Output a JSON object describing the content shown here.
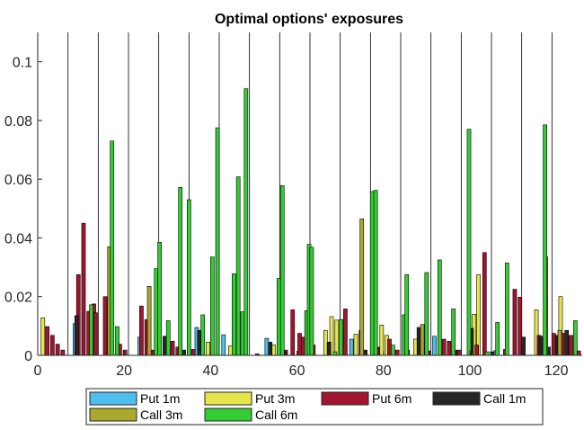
{
  "chart_data": {
    "type": "bar",
    "title": "Optimal options' exposures",
    "xlabel": "",
    "ylabel": "",
    "xlim": [
      0,
      126
    ],
    "ylim": [
      0,
      0.11
    ],
    "xticks": [
      0,
      20,
      40,
      60,
      80,
      100,
      120
    ],
    "yticks": [
      0,
      0.02,
      0.04,
      0.06,
      0.08,
      0.1
    ],
    "xtick_labels": [
      "0",
      "20",
      "40",
      "60",
      "80",
      "100",
      "120"
    ],
    "ytick_labels": [
      "0",
      "0.02",
      "0.04",
      "0.06",
      "0.08",
      "0.1"
    ],
    "grid": "vertical lines at group boundaries",
    "legend_position": "bottom, outside",
    "bar_group_width": 6,
    "group_boundaries": [
      7,
      14,
      21,
      28,
      35,
      42,
      49,
      56,
      63,
      70,
      77,
      84,
      91,
      98,
      105,
      112,
      119
    ],
    "series": [
      {
        "name": "Put 1m",
        "color": "#4DBEEE",
        "points": [
          [
            8.6,
            0.0108
          ],
          [
            23.6,
            0.0062
          ],
          [
            36.8,
            0.0095
          ],
          [
            43.0,
            0.007
          ],
          [
            53.0,
            0.0058
          ],
          [
            72.6,
            0.0055
          ],
          [
            91.8,
            0.0065
          ],
          [
            106.0,
            0.0016
          ]
        ]
      },
      {
        "name": "Put 3m",
        "color": "#E6E64C",
        "points": [
          [
            1.2,
            0.0128
          ],
          [
            16.0,
            0.0088
          ],
          [
            39.4,
            0.0045
          ],
          [
            44.6,
            0.0032
          ],
          [
            54.6,
            0.0035
          ],
          [
            66.6,
            0.0085
          ],
          [
            68.0,
            0.0132
          ],
          [
            69.2,
            0.012
          ],
          [
            73.6,
            0.0072
          ],
          [
            79.6,
            0.0103
          ],
          [
            80.8,
            0.0068
          ],
          [
            87.4,
            0.0055
          ],
          [
            101.0,
            0.014
          ],
          [
            102.0,
            0.0275
          ],
          [
            115.4,
            0.0155
          ],
          [
            121.0,
            0.02
          ]
        ]
      },
      {
        "name": "Put 6m",
        "color": "#A2142F",
        "points": [
          [
            2.2,
            0.0098
          ],
          [
            3.4,
            0.0068
          ],
          [
            4.6,
            0.0038
          ],
          [
            5.8,
            0.0018
          ],
          [
            9.4,
            0.0275
          ],
          [
            10.6,
            0.045
          ],
          [
            11.8,
            0.015
          ],
          [
            13.0,
            0.0175
          ],
          [
            13.4,
            0.0145
          ],
          [
            15.6,
            0.02
          ],
          [
            19.0,
            0.0038
          ],
          [
            20.2,
            0.0018
          ],
          [
            24.0,
            0.0168
          ],
          [
            25.2,
            0.0122
          ],
          [
            26.4,
            0.0018
          ],
          [
            31.2,
            0.0048
          ],
          [
            32.4,
            0.0028
          ],
          [
            36.0,
            0.002
          ],
          [
            50.8,
            0.0005
          ],
          [
            57.4,
            0.0018
          ],
          [
            59.0,
            0.0155
          ],
          [
            60.6,
            0.0075
          ],
          [
            61.4,
            0.0062
          ],
          [
            63.8,
            0.0035
          ],
          [
            71.2,
            0.0158
          ],
          [
            74.8,
            0.0085
          ],
          [
            78.6,
            0.0028
          ],
          [
            81.4,
            0.0055
          ],
          [
            83.2,
            0.0018
          ],
          [
            89.4,
            0.0048
          ],
          [
            90.4,
            0.0015
          ],
          [
            94.0,
            0.0055
          ],
          [
            95.2,
            0.0048
          ],
          [
            97.6,
            0.0018
          ],
          [
            101.6,
            0.0035
          ],
          [
            103.4,
            0.035
          ],
          [
            108.2,
            0.002
          ],
          [
            110.4,
            0.0225
          ],
          [
            111.6,
            0.0198
          ],
          [
            116.0,
            0.0068
          ],
          [
            119.4,
            0.0075
          ],
          [
            121.4,
            0.0075
          ],
          [
            123.4,
            0.0068
          ],
          [
            125.2,
            0.0015
          ]
        ]
      },
      {
        "name": "Call 1m",
        "color": "#262626",
        "points": [
          [
            9.0,
            0.0135
          ],
          [
            29.4,
            0.0065
          ],
          [
            33.8,
            0.0018
          ],
          [
            37.4,
            0.0085
          ],
          [
            53.8,
            0.0045
          ],
          [
            57.0,
            0.0012
          ],
          [
            67.4,
            0.0045
          ],
          [
            75.8,
            0.0018
          ],
          [
            85.6,
            0.0018
          ],
          [
            88.2,
            0.0095
          ],
          [
            96.6,
            0.0018
          ],
          [
            100.4,
            0.0092
          ],
          [
            105.2,
            0.0012
          ],
          [
            112.4,
            0.0062
          ],
          [
            116.4,
            0.0065
          ],
          [
            118.2,
            0.0028
          ],
          [
            120.2,
            0.0068
          ],
          [
            122.4,
            0.0085
          ]
        ]
      },
      {
        "name": "Call 3m",
        "color": "#A9A92E",
        "points": [
          [
            16.6,
            0.037
          ],
          [
            25.8,
            0.0235
          ],
          [
            75.0,
            0.0465
          ],
          [
            89.0,
            0.0105
          ],
          [
            117.6,
            0.0335
          ],
          [
            120.8,
            0.0085
          ]
        ]
      },
      {
        "name": "Call 6m",
        "color": "#33CC33",
        "points": [
          [
            12.4,
            0.0172
          ],
          [
            17.2,
            0.073
          ],
          [
            18.4,
            0.0098
          ],
          [
            27.4,
            0.0295
          ],
          [
            28.2,
            0.0385
          ],
          [
            30.2,
            0.0118
          ],
          [
            33.0,
            0.0572
          ],
          [
            35.0,
            0.053
          ],
          [
            38.2,
            0.0138
          ],
          [
            40.4,
            0.0335
          ],
          [
            41.6,
            0.0775
          ],
          [
            45.4,
            0.0278
          ],
          [
            46.4,
            0.0608
          ],
          [
            47.4,
            0.0148
          ],
          [
            48.2,
            0.0908
          ],
          [
            55.8,
            0.0262
          ],
          [
            56.6,
            0.0578
          ],
          [
            62.2,
            0.0152
          ],
          [
            62.8,
            0.0378
          ],
          [
            63.4,
            0.0368
          ],
          [
            68.8,
            0.0012
          ],
          [
            70.2,
            0.0122
          ],
          [
            77.4,
            0.0558
          ],
          [
            78.2,
            0.0562
          ],
          [
            82.2,
            0.0035
          ],
          [
            84.8,
            0.0138
          ],
          [
            85.4,
            0.0275
          ],
          [
            90.0,
            0.0282
          ],
          [
            93.0,
            0.0325
          ],
          [
            96.2,
            0.0158
          ],
          [
            99.8,
            0.077
          ],
          [
            104.0,
            0.0012
          ],
          [
            106.4,
            0.0112
          ],
          [
            108.6,
            0.0315
          ],
          [
            117.4,
            0.0785
          ],
          [
            124.4,
            0.0118
          ]
        ]
      }
    ]
  }
}
